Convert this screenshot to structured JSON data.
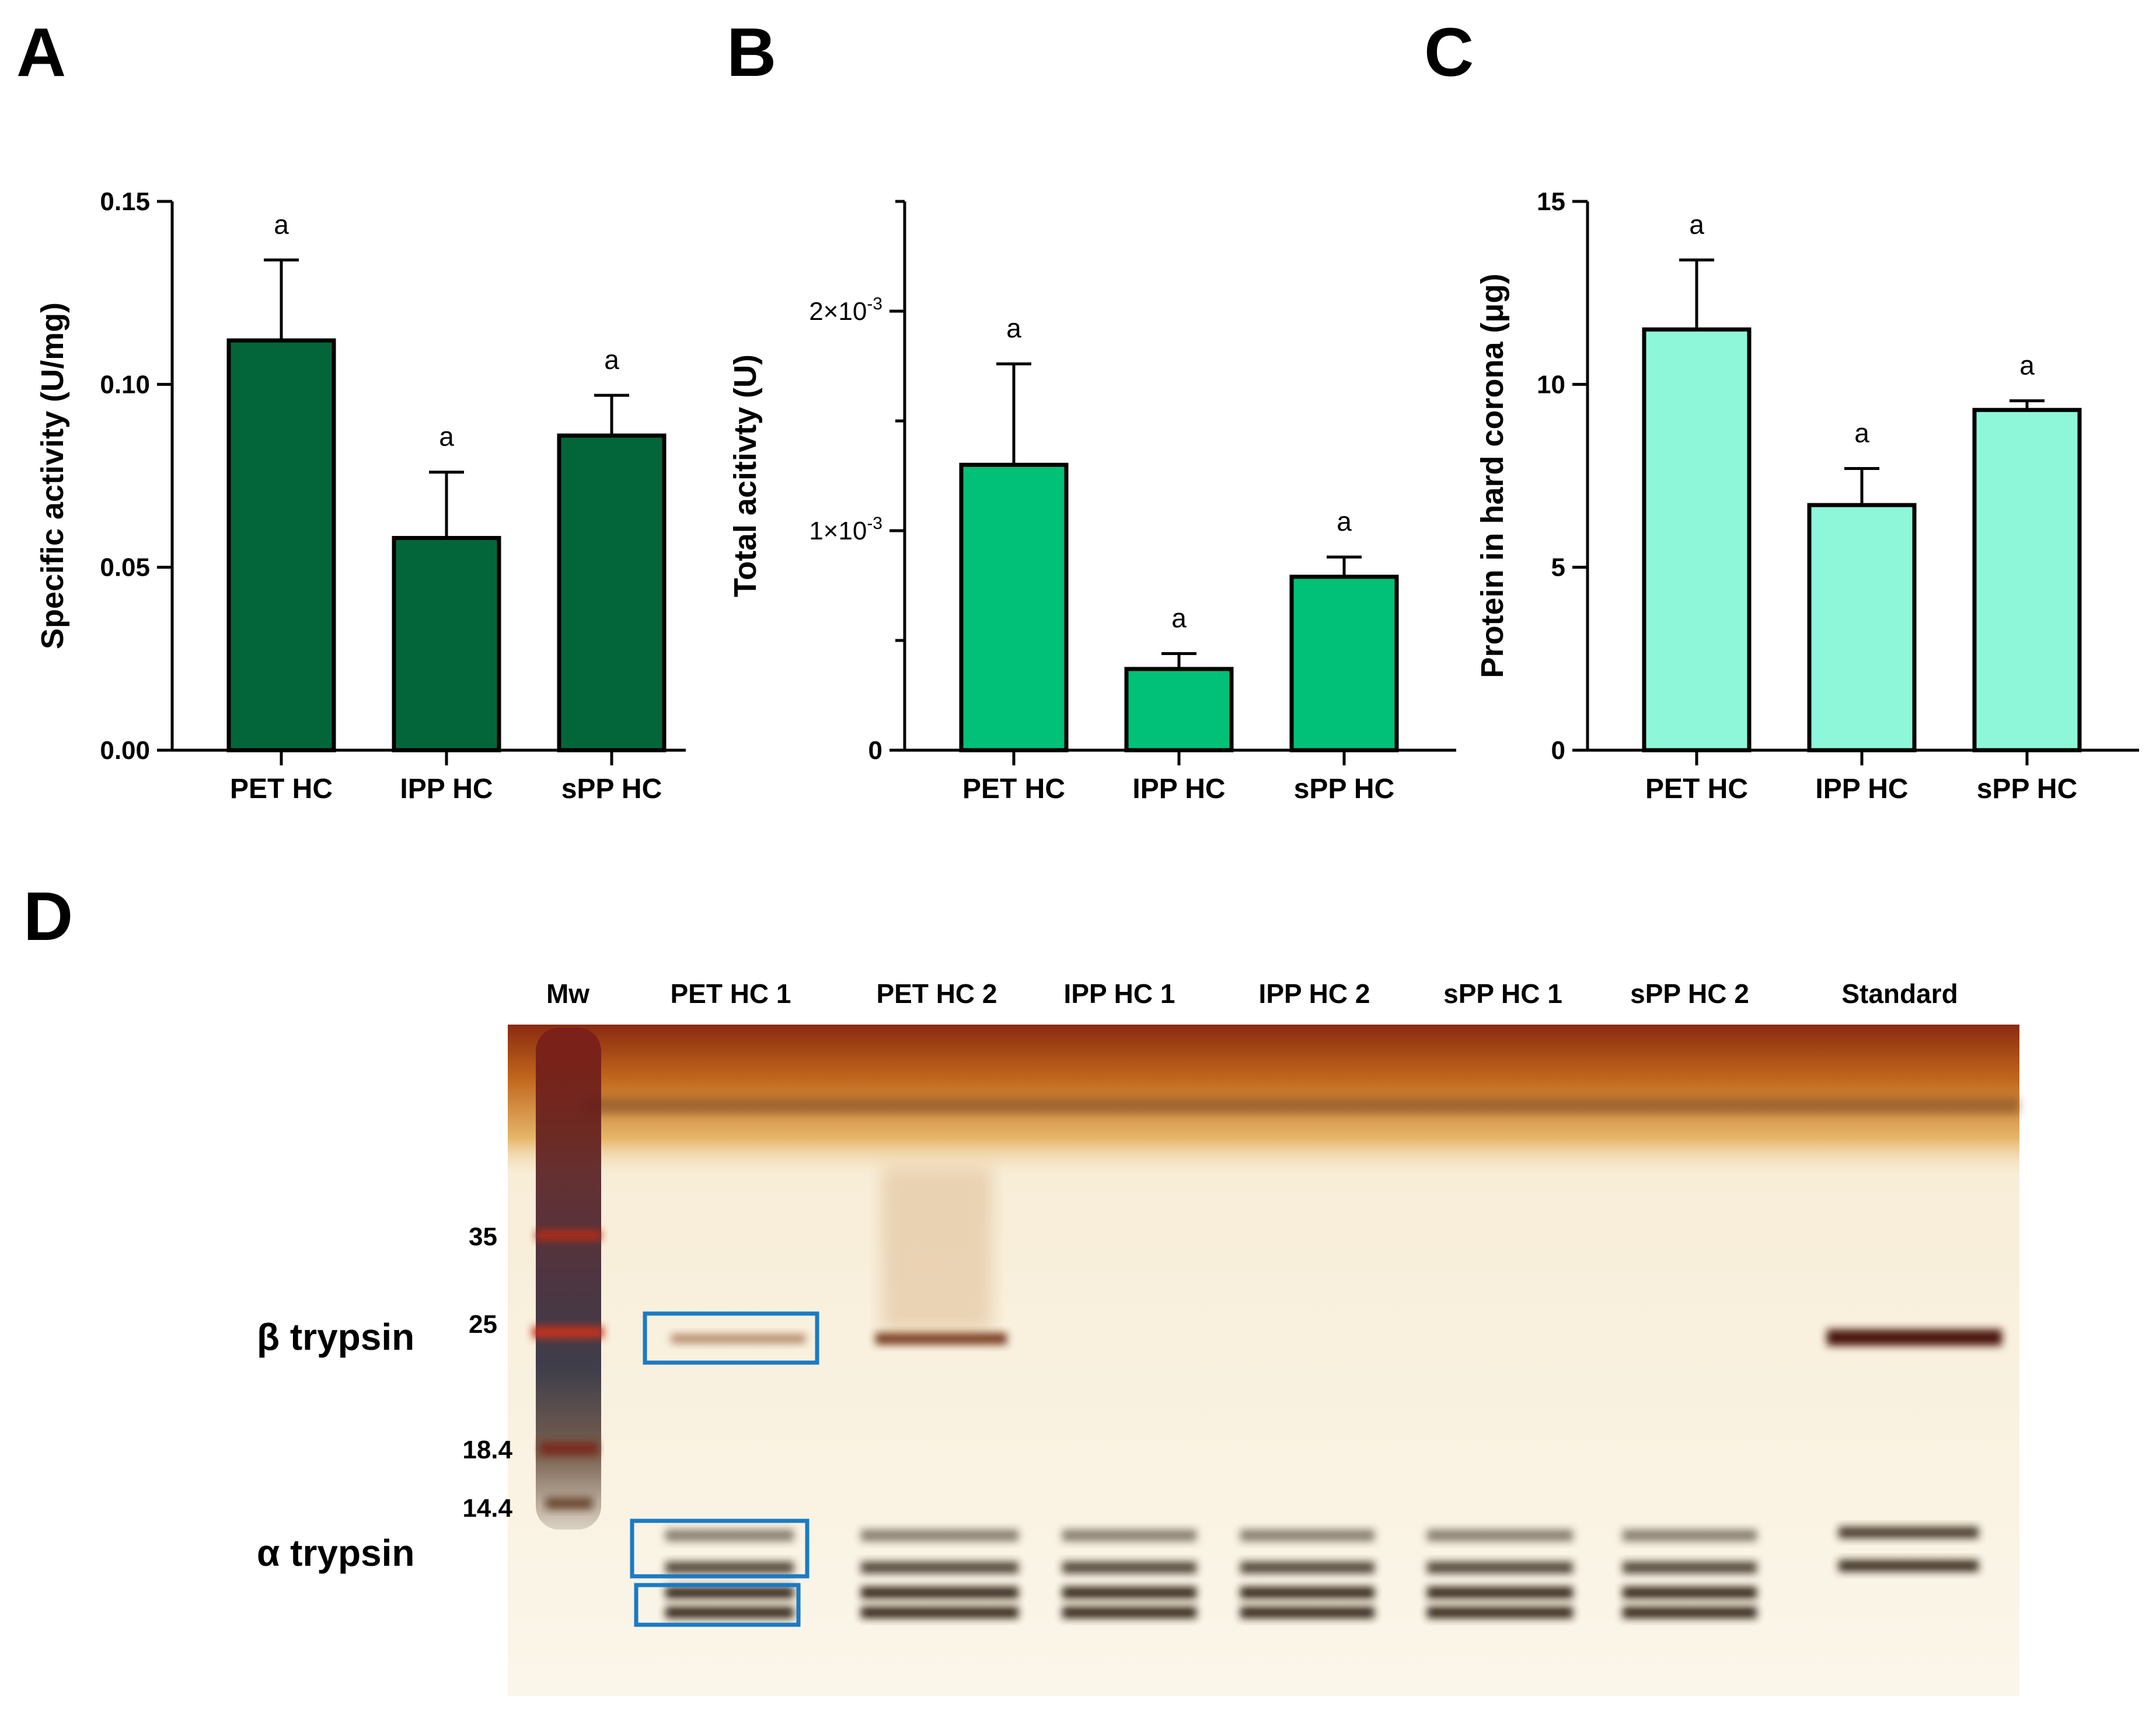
{
  "panels": [
    {
      "letter": "A"
    },
    {
      "letter": "B"
    },
    {
      "letter": "C"
    },
    {
      "letter": "D"
    }
  ],
  "chart_data": [
    {
      "panel": "A",
      "type": "bar",
      "categories": [
        "PET HC",
        "IPP HC",
        "sPP HC"
      ],
      "values": [
        0.112,
        0.058,
        0.086
      ],
      "errors": [
        0.022,
        0.018,
        0.011
      ],
      "significance": [
        "a",
        "a",
        "a"
      ],
      "ylabel": "Specific activity (U/mg)",
      "ylim": [
        0,
        0.15
      ],
      "yticks": [
        0,
        0.05,
        0.1,
        0.15
      ],
      "ytick_labels": [
        "0.00",
        "0.05",
        "0.10",
        "0.15"
      ],
      "bar_color": "#03663a"
    },
    {
      "panel": "B",
      "type": "bar",
      "categories": [
        "PET HC",
        "IPP HC",
        "sPP HC"
      ],
      "values": [
        0.0013,
        0.00037,
        0.00079
      ],
      "errors": [
        0.00046,
        7e-05,
        9e-05
      ],
      "significance": [
        "a",
        "a",
        "a"
      ],
      "ylabel": "Total acitivty (U)",
      "ylim": [
        0,
        0.0025
      ],
      "yticks": [
        0,
        0.001,
        0.002
      ],
      "ytick_labels": [
        "0",
        "1×10⁻³",
        "2×10⁻³"
      ],
      "minor_ticks": [
        0.0005,
        0.0015,
        0.0025
      ],
      "bar_color": "#00c177"
    },
    {
      "panel": "C",
      "type": "bar",
      "categories": [
        "PET HC",
        "IPP HC",
        "sPP HC"
      ],
      "values": [
        11.5,
        6.7,
        9.3
      ],
      "errors": [
        1.9,
        1.0,
        0.25
      ],
      "significance": [
        "a",
        "a",
        "a"
      ],
      "ylabel": "Protein in hard corona (μg)",
      "ylim": [
        0,
        15
      ],
      "yticks": [
        0,
        5,
        10,
        15
      ],
      "ytick_labels": [
        "0",
        "5",
        "10",
        "15"
      ],
      "bar_color": "#8ef7da"
    }
  ],
  "gel": {
    "lanes": [
      "Mw",
      "PET HC 1",
      "PET HC 2",
      "IPP HC 1",
      "IPP HC 2",
      "sPP HC 1",
      "sPP HC 2",
      "Standard"
    ],
    "markers": [
      "35",
      "25",
      "18.4",
      "14.4"
    ],
    "band_labels": [
      "β trypsin",
      "α trypsin"
    ],
    "highlight_color": "#1a7bc4"
  }
}
